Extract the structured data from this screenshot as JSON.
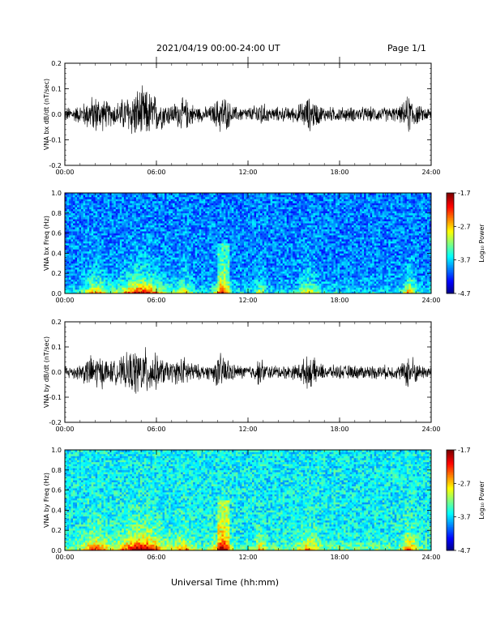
{
  "header": {
    "title": "2021/04/19  00:00-24:00 UT",
    "page": "Page 1/1"
  },
  "xaxis": {
    "title": "Universal Time (hh:mm)",
    "ticks": [
      "00:00",
      "06:00",
      "12:00",
      "18:00",
      "24:00"
    ]
  },
  "chart_data": [
    {
      "type": "line",
      "ylabel": "VNA bx dB/dt (nT/sec)",
      "ylim": [
        -0.2,
        0.2
      ],
      "yticks": [
        "0.2",
        "0.1",
        "0.0",
        "-0.1",
        "-0.2"
      ],
      "xlim": [
        0,
        24
      ],
      "series": [
        {
          "color": "#000000"
        }
      ]
    },
    {
      "type": "heatmap",
      "ylabel": "VNA bx Freq (Hz)",
      "ylim": [
        0.0,
        1.0
      ],
      "yticks": [
        "1.0",
        "0.8",
        "0.6",
        "0.4",
        "0.2",
        "0.0"
      ],
      "xlim": [
        0,
        24
      ],
      "colorbar": {
        "label": "Log₁₀ Power",
        "ticks": [
          "-1.7",
          "-2.7",
          "-3.7",
          "-4.7"
        ],
        "range": [
          -4.7,
          -1.7
        ]
      }
    },
    {
      "type": "line",
      "ylabel": "VNA by dB/dt (nT/sec)",
      "ylim": [
        -0.2,
        0.2
      ],
      "yticks": [
        "0.2",
        "0.1",
        "0.0",
        "-0.1",
        "-0.2"
      ],
      "xlim": [
        0,
        24
      ],
      "series": [
        {
          "color": "#000000"
        }
      ]
    },
    {
      "type": "heatmap",
      "ylabel": "VNA by Freq (Hz)",
      "ylim": [
        0.0,
        1.0
      ],
      "yticks": [
        "1.0",
        "0.8",
        "0.6",
        "0.4",
        "0.2",
        "0.0"
      ],
      "xlim": [
        0,
        24
      ],
      "colorbar": {
        "label": "Log₁₀ Power",
        "ticks": [
          "-1.7",
          "-2.7",
          "-3.7",
          "-4.7"
        ],
        "range": [
          -4.7,
          -1.7
        ]
      }
    }
  ]
}
